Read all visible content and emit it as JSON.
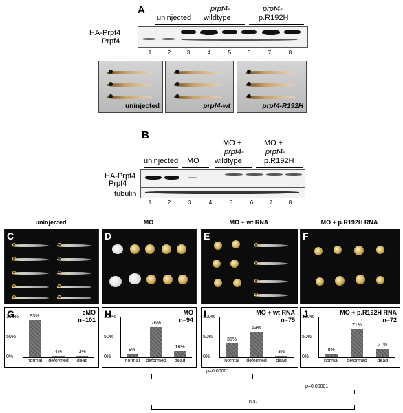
{
  "panelA": {
    "letter": "A",
    "groups": [
      {
        "label": "uninjected",
        "sub": ""
      },
      {
        "label": "prpf4-",
        "sub": "wildtype"
      },
      {
        "label": "prpf4-",
        "sub": "p.R192H"
      }
    ],
    "band_labels": [
      "HA-Prpf4",
      "Prpf4"
    ],
    "lanes": [
      "1",
      "2",
      "3",
      "4",
      "5",
      "6",
      "7",
      "8"
    ],
    "photos": [
      {
        "caption": "uninjected"
      },
      {
        "caption": "prpf4-wt"
      },
      {
        "caption": "prpf4-R192H"
      }
    ]
  },
  "panelB": {
    "letter": "B",
    "groups": [
      {
        "label": "uninjected",
        "sub": "",
        "sub2": ""
      },
      {
        "label": "MO",
        "sub": "",
        "sub2": ""
      },
      {
        "label": "MO +",
        "sub": "prpf4-",
        "sub2": "wildtype"
      },
      {
        "label": "MO +",
        "sub": "prpf4-",
        "sub2": "p.R192H"
      }
    ],
    "band_labels": [
      "HA-Prpf4",
      "Prpf4"
    ],
    "tubulin": "tubulin",
    "lanes": [
      "1",
      "2",
      "3",
      "4",
      "5",
      "6",
      "7",
      "8"
    ]
  },
  "photos": [
    {
      "letter": "C",
      "title": "uninjected"
    },
    {
      "letter": "D",
      "title": "MO"
    },
    {
      "letter": "E",
      "title": "MO + wt RNA"
    },
    {
      "letter": "F",
      "title": "MO + p.R192H RNA"
    }
  ],
  "chart_data": [
    {
      "type": "bar",
      "letter": "G",
      "title": "cMO",
      "n": "n=101",
      "categories": [
        "normal",
        "deformed",
        "dead"
      ],
      "values": [
        93,
        4,
        3
      ],
      "labels": [
        "93%",
        "4%",
        "3%"
      ],
      "ylim": [
        0,
        100
      ],
      "yticks": [
        "100%",
        "50%",
        "0%"
      ]
    },
    {
      "type": "bar",
      "letter": "H",
      "title": "MO",
      "n": "n=94",
      "categories": [
        "normal",
        "deformed",
        "dead"
      ],
      "values": [
        9,
        76,
        16
      ],
      "labels": [
        "9%",
        "76%",
        "16%"
      ],
      "ylim": [
        0,
        100
      ],
      "yticks": [
        "100%",
        "50%",
        "0%"
      ]
    },
    {
      "type": "bar",
      "letter": "I",
      "title": "MO + wt RNA",
      "n": "n=75",
      "categories": [
        "normal",
        "deformed",
        "dead"
      ],
      "values": [
        35,
        63,
        3
      ],
      "labels": [
        "35%",
        "63%",
        "3%"
      ],
      "ylim": [
        0,
        100
      ],
      "yticks": [
        "100%",
        "50%",
        "0%"
      ]
    },
    {
      "type": "bar",
      "letter": "J",
      "title": "MO + p.R192H RNA",
      "n": "n=72",
      "categories": [
        "normal",
        "deformed",
        "dead"
      ],
      "values": [
        8,
        71,
        21
      ],
      "labels": [
        "8%",
        "71%",
        "21%"
      ],
      "ylim": [
        0,
        100
      ],
      "yticks": [
        "100%",
        "50%",
        "0%"
      ]
    }
  ],
  "stats": [
    {
      "label": "p=0.00001"
    },
    {
      "label": "p=0.00001"
    },
    {
      "label": "n.s."
    }
  ]
}
